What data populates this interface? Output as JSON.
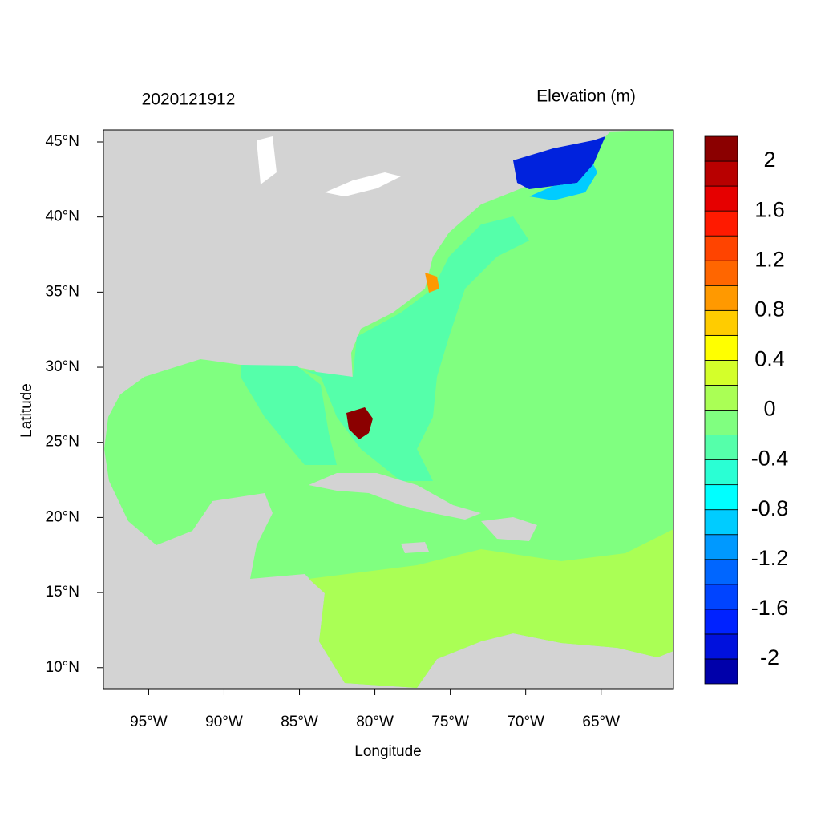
{
  "chart_data": {
    "type": "map",
    "title": "2020121912",
    "subtitle": "Elevation (m)",
    "x_label": "Longitude",
    "y_label": "Latitude",
    "xlim": [
      -98,
      -60.2
    ],
    "ylim": [
      8.6,
      45.8
    ],
    "xticks": [
      {
        "value": -95,
        "label": "95°W"
      },
      {
        "value": -90,
        "label": "90°W"
      },
      {
        "value": -85,
        "label": "85°W"
      },
      {
        "value": -80,
        "label": "80°W"
      },
      {
        "value": -75,
        "label": "75°W"
      },
      {
        "value": -70,
        "label": "70°W"
      },
      {
        "value": -65,
        "label": "65°W"
      }
    ],
    "yticks": [
      {
        "value": 10,
        "label": "10°N"
      },
      {
        "value": 15,
        "label": "15°N"
      },
      {
        "value": 20,
        "label": "20°N"
      },
      {
        "value": 25,
        "label": "25°N"
      },
      {
        "value": 30,
        "label": "30°N"
      },
      {
        "value": 35,
        "label": "35°N"
      },
      {
        "value": 40,
        "label": "40°N"
      },
      {
        "value": 45,
        "label": "45°N"
      }
    ],
    "colorbar": {
      "levels": [
        -2.2,
        -2,
        -1.8,
        -1.6,
        -1.4,
        -1.2,
        -1,
        -0.8,
        -0.6,
        -0.4,
        -0.2,
        0,
        0.2,
        0.4,
        0.6,
        0.8,
        1,
        1.2,
        1.4,
        1.6,
        1.8,
        2,
        2.2
      ],
      "colors": [
        "#0000aa",
        "#0011dd",
        "#0022ff",
        "#0044ff",
        "#0066ff",
        "#0099ff",
        "#00ccff",
        "#00ffff",
        "#2affd4",
        "#55ffaa",
        "#80ff80",
        "#aaff55",
        "#d4ff2a",
        "#ffff00",
        "#ffcc00",
        "#ff9900",
        "#ff6600",
        "#ff4400",
        "#ff1a00",
        "#e60000",
        "#b80000",
        "#8b0000"
      ],
      "ticks": [
        -2,
        -1.6,
        -1.2,
        -0.8,
        -0.4,
        0,
        0.4,
        0.8,
        1.2,
        1.6,
        2
      ]
    }
  }
}
